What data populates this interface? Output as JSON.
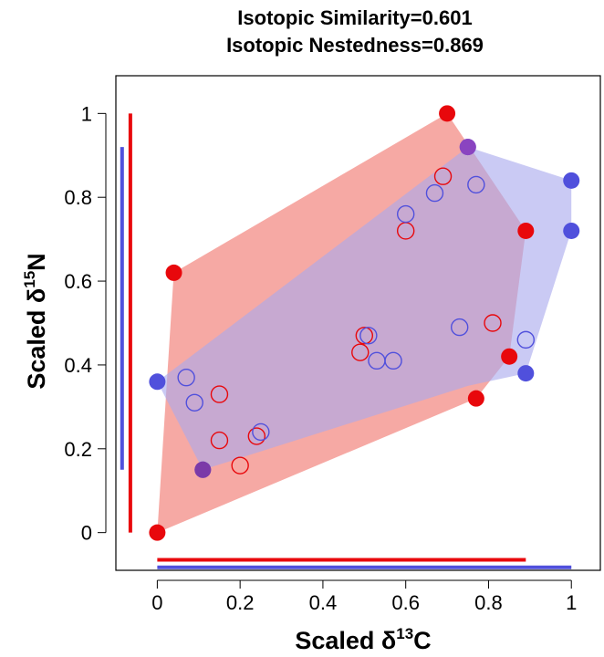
{
  "chart_data": {
    "type": "scatter",
    "title": [
      "Isotopic Similarity=0.601",
      "Isotopic Nestedness=0.869"
    ],
    "xlabel": {
      "prefix": "Scaled ",
      "delta": "δ",
      "sup": "13",
      "element": "C"
    },
    "ylabel": {
      "prefix": "Scaled ",
      "delta": "δ",
      "sup": "15",
      "element": "N"
    },
    "xlim": [
      -0.1,
      1.07
    ],
    "ylim": [
      -0.09,
      1.09
    ],
    "xticks": [
      0,
      0.2,
      0.4,
      0.6,
      0.8,
      1
    ],
    "xtick_labels": [
      "0",
      "0.2",
      "0.4",
      "0.6",
      "0.8",
      "1"
    ],
    "yticks": [
      0,
      0.2,
      0.4,
      0.6,
      0.8,
      1
    ],
    "ytick_labels": [
      "0",
      "0.2",
      "0.4",
      "0.6",
      "0.8",
      "1"
    ],
    "grid": false,
    "series": [
      {
        "color": "#e8080c",
        "hull_fill": "#f59a94",
        "hull": [
          [
            0,
            0
          ],
          [
            0.04,
            0.62
          ],
          [
            0.7,
            1.0
          ],
          [
            0.89,
            0.72
          ],
          [
            0.85,
            0.42
          ],
          [
            0.77,
            0.32
          ]
        ],
        "hull_points": [
          [
            0,
            0
          ],
          [
            0.04,
            0.62
          ],
          [
            0.7,
            1.0
          ],
          [
            0.89,
            0.72
          ],
          [
            0.85,
            0.42
          ],
          [
            0.77,
            0.32
          ]
        ],
        "interior_points": [
          [
            0.69,
            0.85
          ],
          [
            0.6,
            0.72
          ],
          [
            0.81,
            0.5
          ],
          [
            0.5,
            0.47
          ],
          [
            0.49,
            0.43
          ],
          [
            0.15,
            0.33
          ],
          [
            0.15,
            0.22
          ],
          [
            0.24,
            0.23
          ],
          [
            0.2,
            0.16
          ]
        ],
        "x_range": [
          0,
          0.89
        ],
        "y_range": [
          0,
          1.0
        ]
      },
      {
        "color": "#5050dc",
        "hull_fill": "#a9a9ee",
        "hull": [
          [
            0,
            0.36
          ],
          [
            0.11,
            0.15
          ],
          [
            0.75,
            0.35
          ],
          [
            0.89,
            0.38
          ],
          [
            1.0,
            0.72
          ],
          [
            1.0,
            0.84
          ],
          [
            0.75,
            0.92
          ]
        ],
        "hull_points": [
          [
            0,
            0.36
          ],
          [
            0.11,
            0.15
          ],
          [
            0.89,
            0.38
          ],
          [
            1.0,
            0.72
          ],
          [
            1.0,
            0.84
          ],
          [
            0.75,
            0.92
          ]
        ],
        "interior_points": [
          [
            0.77,
            0.83
          ],
          [
            0.67,
            0.81
          ],
          [
            0.6,
            0.76
          ],
          [
            0.73,
            0.49
          ],
          [
            0.89,
            0.46
          ],
          [
            0.51,
            0.47
          ],
          [
            0.53,
            0.41
          ],
          [
            0.57,
            0.41
          ],
          [
            0.07,
            0.37
          ],
          [
            0.09,
            0.31
          ],
          [
            0.25,
            0.24
          ]
        ],
        "x_range": [
          0,
          1.0
        ],
        "y_range": [
          0.15,
          0.92
        ]
      }
    ],
    "overlap_color": "#b66a97"
  }
}
